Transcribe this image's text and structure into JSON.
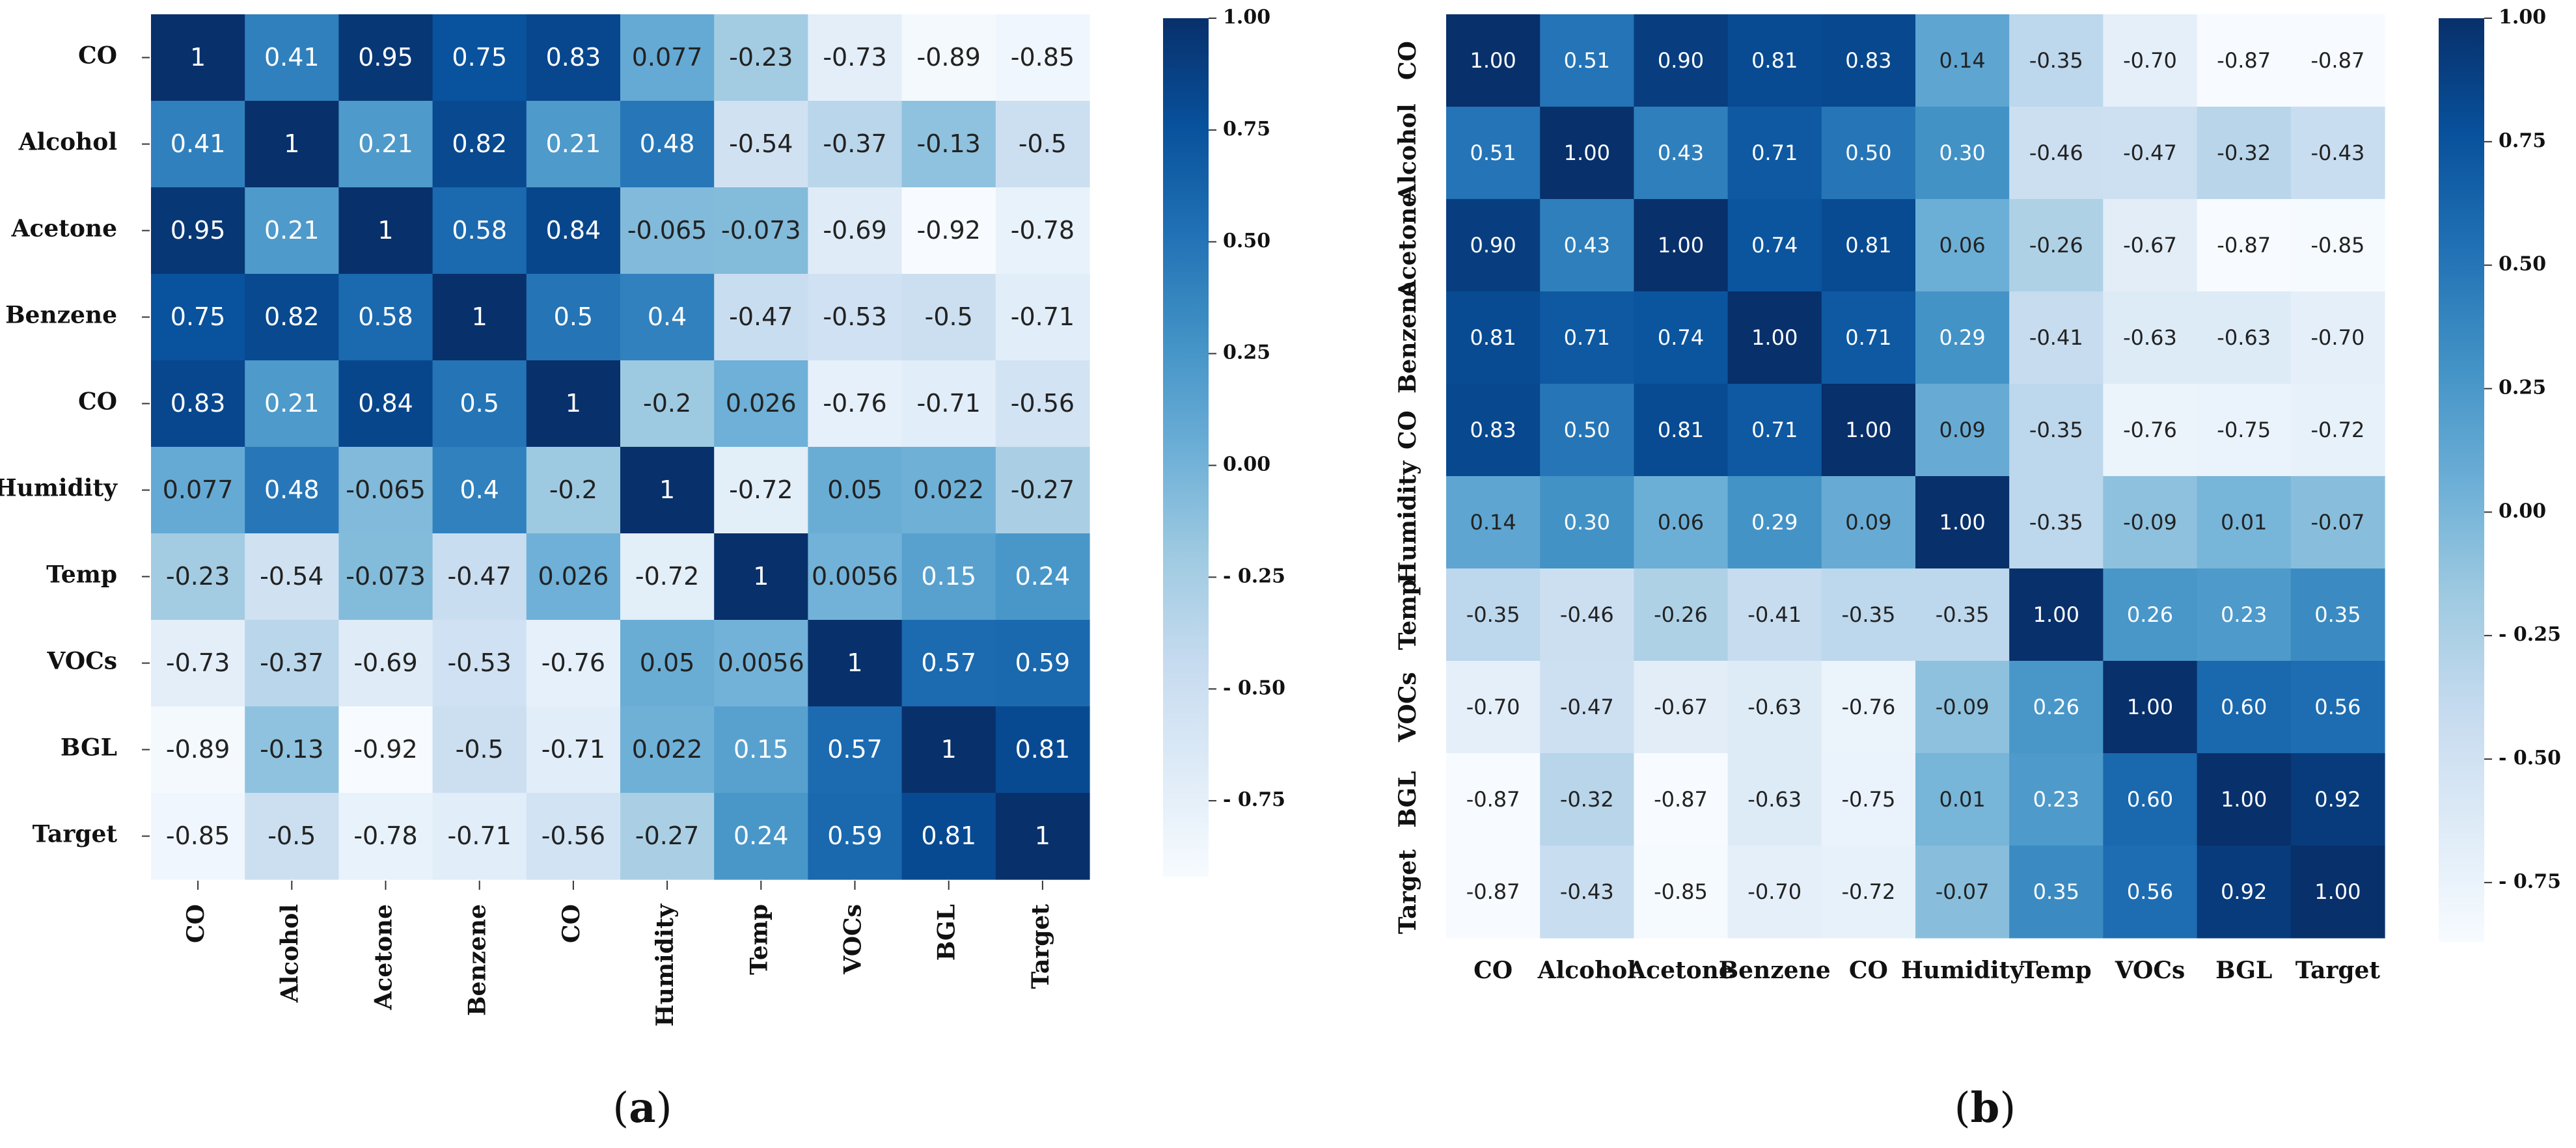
{
  "chart_data": [
    {
      "type": "heatmap",
      "panel_label": {
        "open": "(",
        "letter": "a",
        "close": ")"
      },
      "row_labels": [
        "CO",
        "Alcohol",
        "Acetone",
        "Benzene",
        "CO",
        "Humidity",
        "Temp",
        "VOCs",
        "BGL",
        "Target"
      ],
      "col_labels": [
        "CO",
        "Alcohol",
        "Acetone",
        "Benzene",
        "CO",
        "Humidity",
        "Temp",
        "VOCs",
        "BGL",
        "Target"
      ],
      "cell_labels": [
        [
          "1",
          "0.41",
          "0.95",
          "0.75",
          "0.83",
          "0.077",
          "-0.23",
          "-0.73",
          "-0.89",
          "-0.85"
        ],
        [
          "0.41",
          "1",
          "0.21",
          "0.82",
          "0.21",
          "0.48",
          "-0.54",
          "-0.37",
          "-0.13",
          "-0.5"
        ],
        [
          "0.95",
          "0.21",
          "1",
          "0.58",
          "0.84",
          "-0.065",
          "-0.073",
          "-0.69",
          "-0.92",
          "-0.78"
        ],
        [
          "0.75",
          "0.82",
          "0.58",
          "1",
          "0.5",
          "0.4",
          "-0.47",
          "-0.53",
          "-0.5",
          "-0.71"
        ],
        [
          "0.83",
          "0.21",
          "0.84",
          "0.5",
          "1",
          "-0.2",
          "0.026",
          "-0.76",
          "-0.71",
          "-0.56"
        ],
        [
          "0.077",
          "0.48",
          "-0.065",
          "0.4",
          "-0.2",
          "1",
          "-0.72",
          "0.05",
          "0.022",
          "-0.27"
        ],
        [
          "-0.23",
          "-0.54",
          "-0.073",
          "-0.47",
          "0.026",
          "-0.72",
          "1",
          "0.0056",
          "0.15",
          "0.24"
        ],
        [
          "-0.73",
          "-0.37",
          "-0.69",
          "-0.53",
          "-0.76",
          "0.05",
          "0.0056",
          "1",
          "0.57",
          "0.59"
        ],
        [
          "-0.89",
          "-0.13",
          "-0.92",
          "-0.5",
          "-0.71",
          "0.022",
          "0.15",
          "0.57",
          "1",
          "0.81"
        ],
        [
          "-0.85",
          "-0.5",
          "-0.78",
          "-0.71",
          "-0.56",
          "-0.27",
          "0.24",
          "0.59",
          "0.81",
          "1"
        ]
      ],
      "colorbar": {
        "min": -0.92,
        "max": 1.0,
        "ticks": [
          1.0,
          0.75,
          0.5,
          0.25,
          0.0,
          -0.25,
          -0.5,
          -0.75
        ],
        "tick_labels": [
          "1.00",
          "0.75",
          "0.50",
          "0.25",
          "0.00",
          "- 0.25",
          "- 0.50",
          "- 0.75"
        ]
      },
      "colormap": [
        "#f7fbff",
        "#deebf7",
        "#c6dbef",
        "#9ecae1",
        "#6baed6",
        "#4292c6",
        "#2171b5",
        "#08519c",
        "#08306b"
      ]
    },
    {
      "type": "heatmap",
      "panel_label": {
        "open": "(",
        "letter": "b",
        "close": ")"
      },
      "row_labels": [
        "CO",
        "Alcohol",
        "Acetone",
        "Benzene",
        "CO",
        "Humidity",
        "Temp",
        "VOCs",
        "BGL",
        "Target"
      ],
      "col_labels": [
        "CO",
        "Alcohol",
        "Acetone",
        "Benzene",
        "CO",
        "Humidity",
        "Temp",
        "VOCs",
        "BGL",
        "Target"
      ],
      "cell_labels": [
        [
          "1.00",
          "0.51",
          "0.90",
          "0.81",
          "0.83",
          "0.14",
          "-0.35",
          "-0.70",
          "-0.87",
          "-0.87"
        ],
        [
          "0.51",
          "1.00",
          "0.43",
          "0.71",
          "0.50",
          "0.30",
          "-0.46",
          "-0.47",
          "-0.32",
          "-0.43"
        ],
        [
          "0.90",
          "0.43",
          "1.00",
          "0.74",
          "0.81",
          "0.06",
          "-0.26",
          "-0.67",
          "-0.87",
          "-0.85"
        ],
        [
          "0.81",
          "0.71",
          "0.74",
          "1.00",
          "0.71",
          "0.29",
          "-0.41",
          "-0.63",
          "-0.63",
          "-0.70"
        ],
        [
          "0.83",
          "0.50",
          "0.81",
          "0.71",
          "1.00",
          "0.09",
          "-0.35",
          "-0.76",
          "-0.75",
          "-0.72"
        ],
        [
          "0.14",
          "0.30",
          "0.06",
          "0.29",
          "0.09",
          "1.00",
          "-0.35",
          "-0.09",
          "0.01",
          "-0.07"
        ],
        [
          "-0.35",
          "-0.46",
          "-0.26",
          "-0.41",
          "-0.35",
          "-0.35",
          "1.00",
          "0.26",
          "0.23",
          "0.35"
        ],
        [
          "-0.70",
          "-0.47",
          "-0.67",
          "-0.63",
          "-0.76",
          "-0.09",
          "0.26",
          "1.00",
          "0.60",
          "0.56"
        ],
        [
          "-0.87",
          "-0.32",
          "-0.87",
          "-0.63",
          "-0.75",
          "0.01",
          "0.23",
          "0.60",
          "1.00",
          "0.92"
        ],
        [
          "-0.87",
          "-0.43",
          "-0.85",
          "-0.70",
          "-0.72",
          "-0.07",
          "0.35",
          "0.56",
          "0.92",
          "1.00"
        ]
      ],
      "colorbar": {
        "min": -0.87,
        "max": 1.0,
        "ticks": [
          1.0,
          0.75,
          0.5,
          0.25,
          0.0,
          -0.25,
          -0.5,
          -0.75
        ],
        "tick_labels": [
          "1.00",
          "0.75",
          "0.50",
          "0.25",
          "0.00",
          "- 0.25",
          "- 0.50",
          "- 0.75"
        ]
      },
      "colormap": [
        "#f7fbff",
        "#deebf7",
        "#c6dbef",
        "#9ecae1",
        "#6baed6",
        "#4292c6",
        "#2171b5",
        "#08519c",
        "#08306b"
      ]
    }
  ]
}
